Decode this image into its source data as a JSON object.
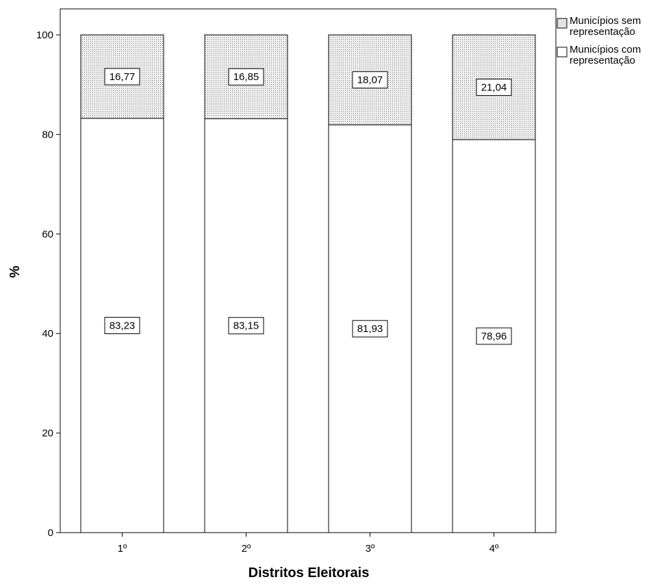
{
  "chart_data": {
    "type": "bar",
    "stacked": true,
    "categories": [
      "1º",
      "2º",
      "3º",
      "4º"
    ],
    "series": [
      {
        "name": "Municípios com representação",
        "values": [
          83.23,
          83.15,
          81.93,
          78.96
        ],
        "labels": [
          "83,23",
          "83,15",
          "81,93",
          "78,96"
        ],
        "fill": "#ffffff",
        "pattern": "none"
      },
      {
        "name": "Municípios sem representação",
        "values": [
          16.77,
          16.85,
          18.07,
          21.04
        ],
        "labels": [
          "16,77",
          "16,85",
          "18,07",
          "21,04"
        ],
        "fill": "#ffffff",
        "pattern": "dotted"
      }
    ],
    "legend": [
      {
        "lines": [
          "Municípios sem",
          "representação"
        ],
        "pattern": "dotted"
      },
      {
        "lines": [
          "Municípios com",
          "representação"
        ],
        "pattern": "none"
      }
    ],
    "legend_position": "top-right",
    "xlabel": "Distritos Eleitorais",
    "ylabel": "%",
    "ylim": [
      0,
      105
    ],
    "yticks": [
      0,
      20,
      40,
      60,
      80,
      100
    ],
    "grid": false
  }
}
